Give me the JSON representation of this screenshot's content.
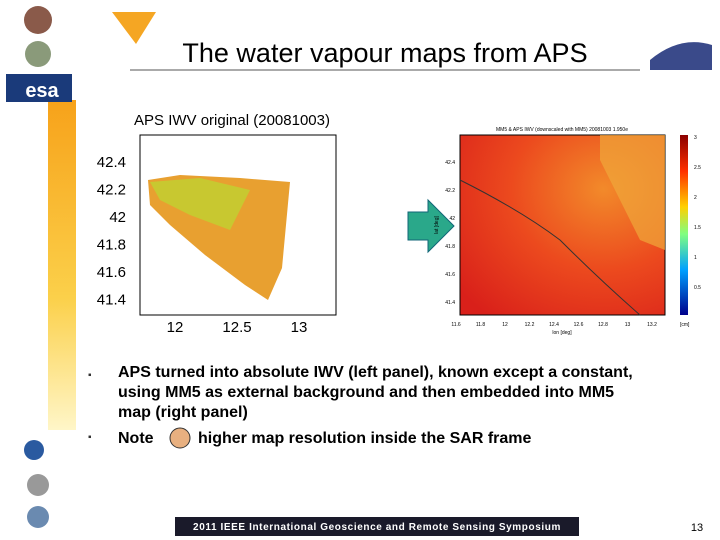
{
  "slide": {
    "title": "The water vapour maps from APS",
    "logo_text": "esa",
    "left_panel": {
      "title": "APS IWV original (20081003)",
      "yticks": [
        "42.4",
        "42.2",
        "42",
        "41.8",
        "41.6",
        "41.4"
      ],
      "xticks": [
        "12",
        "12.5",
        "13"
      ]
    },
    "right_panel": {
      "title": "MM5 & APS IWV (downscaled with MM5) 20081003 1.950e",
      "ylabel": "lat [deg]",
      "xlabel": "lon [deg]",
      "yticks": [
        "42.4",
        "42.2",
        "42",
        "41.8",
        "41.6",
        "41.4"
      ],
      "xticks": [
        "11.6",
        "11.8",
        "12",
        "12.2",
        "12.4",
        "12.6",
        "12.8",
        "13",
        "13.2"
      ],
      "colorbar_ticks": [
        "3",
        "2.5",
        "2",
        "1.5",
        "1",
        "0.5"
      ],
      "colorbar_unit": "[cm]"
    },
    "bullets": [
      "APS turned into absolute IWV (left  panel), known except a constant, using MM5 as external background and then embedded into MM5 map (right panel)",
      "Note",
      "higher map resolution inside the SAR frame"
    ],
    "footer": "2011 IEEE International Geoscience and Remote Sensing Symposium",
    "page_number": "13"
  }
}
